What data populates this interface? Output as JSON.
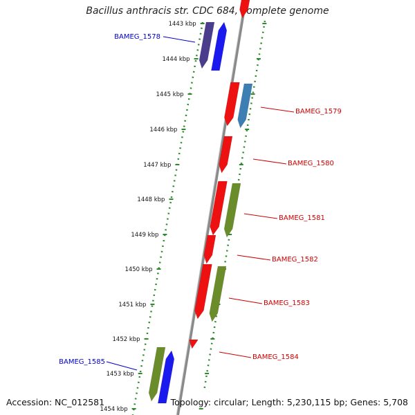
{
  "title": "Bacillus anthracis str. CDC 684, complete genome",
  "accession": "Accession: NC_012581",
  "topology": "Topology: circular; Length: 5,230,115 bp; Genes: 5,708",
  "colors": {
    "backbone": "#9a9a9a",
    "tick_green": "#2f8a2f",
    "forward_label": "#0000cc",
    "reverse_label": "#cc0000",
    "red_gene": "#ee1111",
    "blue_gene": "#1a1aee",
    "purple_gene": "#4a3d8c",
    "steel_gene": "#3d7fb3",
    "olive_gene": "#6b8c2a"
  },
  "ticks": [
    "1443 kbp",
    "1444 kbp",
    "1445 kbp",
    "1446 kbp",
    "1447 kbp",
    "1448 kbp",
    "1449 kbp",
    "1450 kbp",
    "1451 kbp",
    "1452 kbp",
    "1453 kbp",
    "1454 kbp"
  ],
  "gene_labels": [
    {
      "name": "BAMEG_1578",
      "side": "left"
    },
    {
      "name": "BAMEG_1579",
      "side": "right"
    },
    {
      "name": "BAMEG_1580",
      "side": "right"
    },
    {
      "name": "BAMEG_1581",
      "side": "right"
    },
    {
      "name": "BAMEG_1582",
      "side": "right"
    },
    {
      "name": "BAMEG_1583",
      "side": "right"
    },
    {
      "name": "BAMEG_1584",
      "side": "right"
    },
    {
      "name": "BAMEG_1585",
      "side": "left"
    }
  ]
}
